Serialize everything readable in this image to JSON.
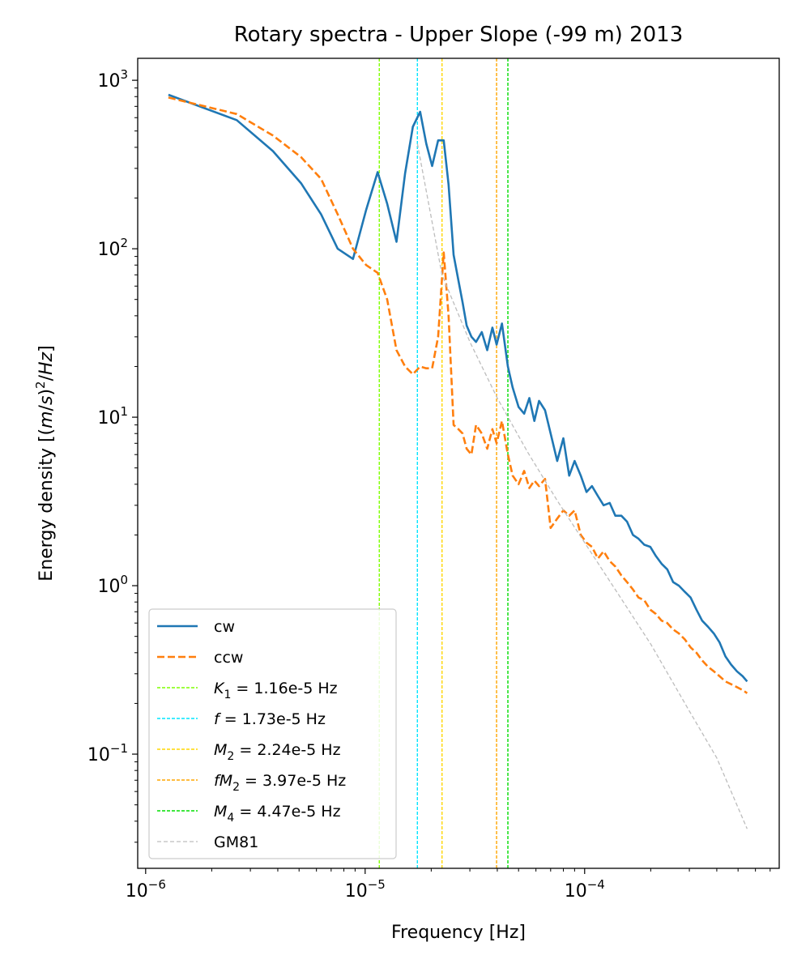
{
  "chart_data": {
    "type": "line",
    "title": "Rotary spectra - Upper Slope (-99 m) 2013",
    "xlabel": "Frequency [Hz]",
    "ylabel_parts": [
      "Energy density [(",
      "m",
      "/",
      "s",
      ")",
      "2",
      "/",
      "Hz",
      "]"
    ],
    "x_scale": "log",
    "y_scale": "log",
    "xlim": [
      9.2e-07,
      0.00077
    ],
    "ylim": [
      0.021,
      1350
    ],
    "x_ticks": [
      {
        "value": 1e-06,
        "base": "10",
        "exp": "−6"
      },
      {
        "value": 1e-05,
        "base": "10",
        "exp": "−5"
      },
      {
        "value": 0.0001,
        "base": "10",
        "exp": "−4"
      }
    ],
    "y_ticks": [
      {
        "value": 0.1,
        "base": "10",
        "exp": "−1"
      },
      {
        "value": 1,
        "base": "10",
        "exp": "0"
      },
      {
        "value": 10,
        "base": "10",
        "exp": "1"
      },
      {
        "value": 100,
        "base": "10",
        "exp": "2"
      },
      {
        "value": 1000,
        "base": "10",
        "exp": "3"
      }
    ],
    "series": [
      {
        "name": "cw",
        "color": "#1f77b4",
        "dash": "solid",
        "x": [
          1.27e-06,
          2.6e-06,
          3.8e-06,
          5.1e-06,
          6.3e-06,
          7.5e-06,
          8.8e-06,
          1.01e-05,
          1.14e-05,
          1.26e-05,
          1.39e-05,
          1.52e-05,
          1.65e-05,
          1.78e-05,
          1.9e-05,
          2.02e-05,
          2.15e-05,
          2.28e-05,
          2.4e-05,
          2.53e-05,
          2.66e-05,
          2.78e-05,
          2.9e-05,
          3.05e-05,
          3.2e-05,
          3.4e-05,
          3.6e-05,
          3.8e-05,
          3.97e-05,
          4.2e-05,
          4.47e-05,
          4.7e-05,
          5e-05,
          5.3e-05,
          5.6e-05,
          5.9e-05,
          6.2e-05,
          6.6e-05,
          7e-05,
          7.5e-05,
          8e-05,
          8.5e-05,
          9e-05,
          9.6e-05,
          0.000102,
          0.000108,
          0.000115,
          0.000122,
          0.00013,
          0.000138,
          0.000147,
          0.000156,
          0.000166,
          0.000176,
          0.000187,
          0.000199,
          0.000211,
          0.000224,
          0.000238,
          0.000253,
          0.000269,
          0.000286,
          0.000304,
          0.000323,
          0.000343,
          0.000365,
          0.000388,
          0.000412,
          0.000438,
          0.000465,
          0.000494,
          0.000525,
          0.00055
        ],
        "y": [
          820,
          580,
          380,
          245,
          160,
          100,
          87,
          170,
          285,
          185,
          110,
          280,
          530,
          650,
          420,
          310,
          440,
          440,
          240,
          92,
          65,
          48,
          35,
          30,
          28,
          32,
          25,
          34,
          27,
          36,
          20,
          15,
          11.5,
          10.5,
          13,
          9.5,
          12.5,
          11,
          8,
          5.5,
          7.5,
          4.5,
          5.5,
          4.5,
          3.6,
          3.9,
          3.4,
          3.0,
          3.1,
          2.6,
          2.6,
          2.4,
          2.0,
          1.9,
          1.75,
          1.7,
          1.5,
          1.35,
          1.25,
          1.05,
          1.0,
          0.92,
          0.85,
          0.72,
          0.62,
          0.57,
          0.52,
          0.46,
          0.38,
          0.34,
          0.31,
          0.29,
          0.27
        ]
      },
      {
        "name": "ccw",
        "color": "#ff7f0e",
        "dash": "dashed",
        "x": [
          1.27e-06,
          2.6e-06,
          3.8e-06,
          5.1e-06,
          6.3e-06,
          7.5e-06,
          8.8e-06,
          1.01e-05,
          1.14e-05,
          1.26e-05,
          1.39e-05,
          1.52e-05,
          1.65e-05,
          1.78e-05,
          1.9e-05,
          2.02e-05,
          2.15e-05,
          2.28e-05,
          2.4e-05,
          2.53e-05,
          2.66e-05,
          2.78e-05,
          2.9e-05,
          3.05e-05,
          3.2e-05,
          3.4e-05,
          3.6e-05,
          3.8e-05,
          3.97e-05,
          4.2e-05,
          4.47e-05,
          4.7e-05,
          5e-05,
          5.3e-05,
          5.6e-05,
          5.9e-05,
          6.2e-05,
          6.6e-05,
          7e-05,
          7.5e-05,
          8e-05,
          8.5e-05,
          9e-05,
          9.6e-05,
          0.000102,
          0.000108,
          0.000115,
          0.000122,
          0.00013,
          0.000138,
          0.000147,
          0.000156,
          0.000166,
          0.000176,
          0.000187,
          0.000199,
          0.000211,
          0.000224,
          0.000238,
          0.000253,
          0.000269,
          0.000286,
          0.000304,
          0.000323,
          0.000343,
          0.000365,
          0.000388,
          0.000412,
          0.000438,
          0.000465,
          0.000494,
          0.000525,
          0.00055
        ],
        "y": [
          790,
          630,
          470,
          350,
          260,
          160,
          100,
          80,
          72,
          50,
          25,
          20,
          18,
          20,
          19.5,
          19.5,
          30,
          95,
          40,
          9,
          8.5,
          8,
          6.5,
          6,
          9,
          8,
          6.5,
          8.5,
          7,
          9.5,
          6,
          4.5,
          4,
          4.8,
          3.8,
          4.2,
          3.9,
          4.3,
          2.2,
          2.5,
          2.8,
          2.6,
          2.8,
          2.0,
          1.8,
          1.7,
          1.45,
          1.6,
          1.4,
          1.3,
          1.15,
          1.05,
          0.95,
          0.85,
          0.82,
          0.72,
          0.68,
          0.62,
          0.6,
          0.55,
          0.52,
          0.48,
          0.43,
          0.4,
          0.36,
          0.33,
          0.31,
          0.29,
          0.27,
          0.26,
          0.25,
          0.24,
          0.23
        ]
      },
      {
        "name": "GM81",
        "color": "#bdbdbd",
        "dash": "dashed-thin",
        "x": [
          1.73e-05,
          2.24e-05,
          3e-05,
          4e-05,
          5.5e-05,
          7.5e-05,
          0.0001,
          0.00014,
          0.0002,
          0.0003,
          0.0004,
          0.00055
        ],
        "y": [
          420,
          70,
          28,
          13,
          6.2,
          3.2,
          1.8,
          0.92,
          0.45,
          0.18,
          0.095,
          0.036
        ]
      }
    ],
    "vlines": [
      {
        "id": "k1",
        "label": "K",
        "sub": "1",
        "suffix": " = 1.16e-5 Hz",
        "x": 1.16e-05,
        "color": "#7fff00"
      },
      {
        "id": "f",
        "label": "f",
        "sub": "",
        "suffix": " = 1.73e-5 Hz",
        "x": 1.73e-05,
        "color": "#00e5ff"
      },
      {
        "id": "m2",
        "label": "M",
        "sub": "2",
        "suffix": " = 2.24e-5 Hz",
        "x": 2.24e-05,
        "color": "#ffd700"
      },
      {
        "id": "fm2",
        "label": "fM",
        "sub": "2",
        "suffix": " = 3.97e-5 Hz",
        "x": 3.97e-05,
        "color": "#ffa500"
      },
      {
        "id": "m4",
        "label": "M",
        "sub": "4",
        "suffix": " = 4.47e-5 Hz",
        "x": 4.47e-05,
        "color": "#00dd00"
      }
    ],
    "legend_position": "lower-left",
    "grid": false
  }
}
